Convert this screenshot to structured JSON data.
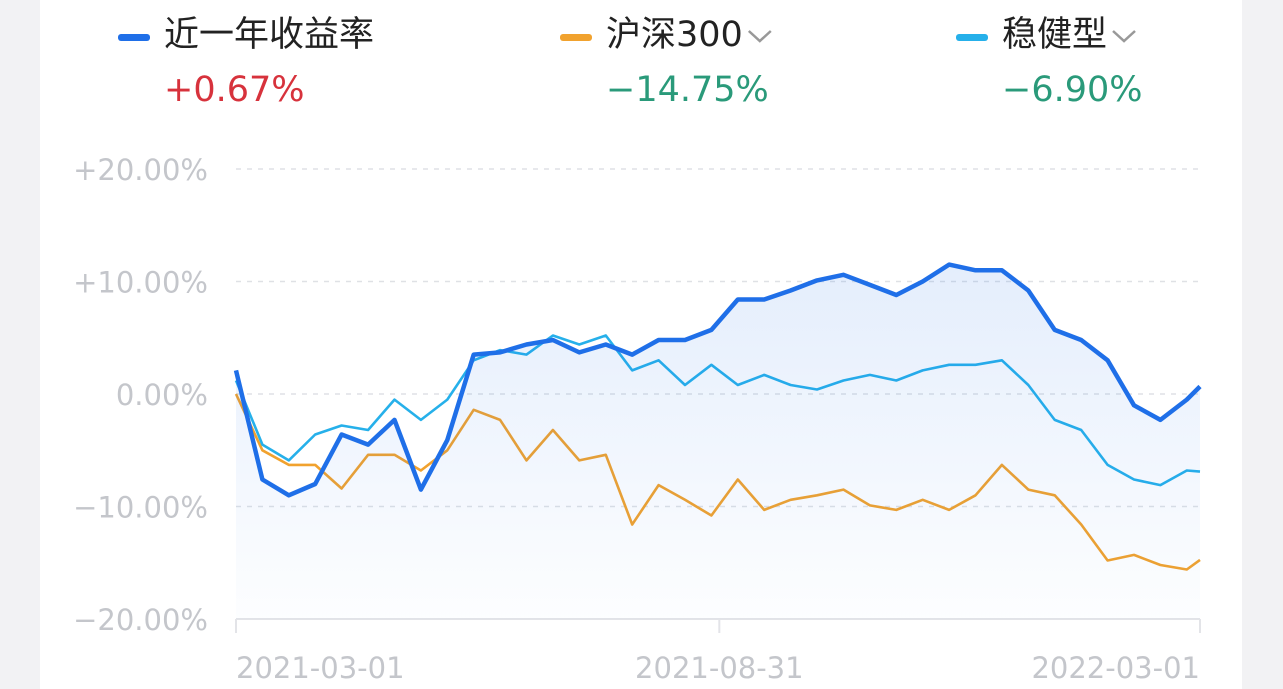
{
  "chart_data": {
    "type": "line",
    "x": [
      "2021-03-01",
      "2021-03-11",
      "2021-03-21",
      "2021-03-31",
      "2021-04-10",
      "2021-04-20",
      "2021-04-30",
      "2021-05-10",
      "2021-05-20",
      "2021-05-30",
      "2021-06-09",
      "2021-06-19",
      "2021-06-29",
      "2021-07-09",
      "2021-07-19",
      "2021-07-29",
      "2021-08-08",
      "2021-08-18",
      "2021-08-28",
      "2021-09-07",
      "2021-09-17",
      "2021-09-27",
      "2021-10-07",
      "2021-10-17",
      "2021-10-27",
      "2021-11-06",
      "2021-11-16",
      "2021-11-26",
      "2021-12-06",
      "2021-12-16",
      "2021-12-26",
      "2022-01-05",
      "2022-01-15",
      "2022-01-25",
      "2022-02-04",
      "2022-02-14",
      "2022-02-24",
      "2022-03-01"
    ],
    "series": [
      {
        "name": "近一年收益率",
        "color": "#1f6fe8",
        "change_label": "+0.67%",
        "change_color": "#d7323c",
        "area": true,
        "values": [
          2.1,
          -7.6,
          -9,
          -8,
          -3.6,
          -4.5,
          -2.3,
          -8.5,
          -4.1,
          3.5,
          3.7,
          4.4,
          4.8,
          3.7,
          4.4,
          3.5,
          4.8,
          4.8,
          5.7,
          8.4,
          8.4,
          9.2,
          10.1,
          10.6,
          9.7,
          8.8,
          10,
          11.5,
          11,
          11,
          9.2,
          5.7,
          4.8,
          3,
          -1,
          -2.3,
          -0.5,
          0.67
        ]
      },
      {
        "name": "沪深300",
        "color": "#f1a22e",
        "change_label": "−14.75%",
        "change_color": "#2a9a7a",
        "dropdown": true,
        "values": [
          0,
          -5,
          -6.3,
          -6.3,
          -8.4,
          -5.4,
          -5.4,
          -6.8,
          -5,
          -1.4,
          -2.3,
          -5.9,
          -3.2,
          -5.9,
          -5.4,
          -11.6,
          -8.1,
          -9.4,
          -10.8,
          -7.6,
          -10.3,
          -9.4,
          -9,
          -8.5,
          -9.9,
          -10.3,
          -9.4,
          -10.3,
          -9,
          -6.3,
          -8.5,
          -9,
          -11.6,
          -14.8,
          -14.3,
          -15.2,
          -15.6,
          -14.75
        ]
      },
      {
        "name": "稳健型",
        "color": "#26b0ea",
        "change_label": "−6.90%",
        "change_color": "#2a9a7a",
        "dropdown": true,
        "values": [
          1.2,
          -4.5,
          -5.9,
          -3.6,
          -2.8,
          -3.2,
          -0.5,
          -2.3,
          -0.5,
          3,
          3.9,
          3.5,
          5.2,
          4.4,
          5.2,
          2.1,
          3,
          0.8,
          2.6,
          0.8,
          1.7,
          0.8,
          0.4,
          1.2,
          1.7,
          1.2,
          2.1,
          2.6,
          2.6,
          3,
          0.8,
          -2.3,
          -3.2,
          -6.3,
          -7.6,
          -8.1,
          -6.8,
          -6.9
        ]
      }
    ],
    "ylim": [
      -20,
      20
    ],
    "yticks": [
      {
        "value": -20,
        "label": "−20.00%"
      },
      {
        "value": -10,
        "label": "−10.00%"
      },
      {
        "value": 0,
        "label": "0.00%"
      },
      {
        "value": 10,
        "label": "+10.00%"
      },
      {
        "value": 20,
        "label": "+20.00%"
      }
    ],
    "xlim": [
      "2021-03-01",
      "2022-03-01"
    ],
    "xticks": [
      "2021-03-01",
      "2021-08-31",
      "2022-03-01"
    ],
    "grid": true
  }
}
